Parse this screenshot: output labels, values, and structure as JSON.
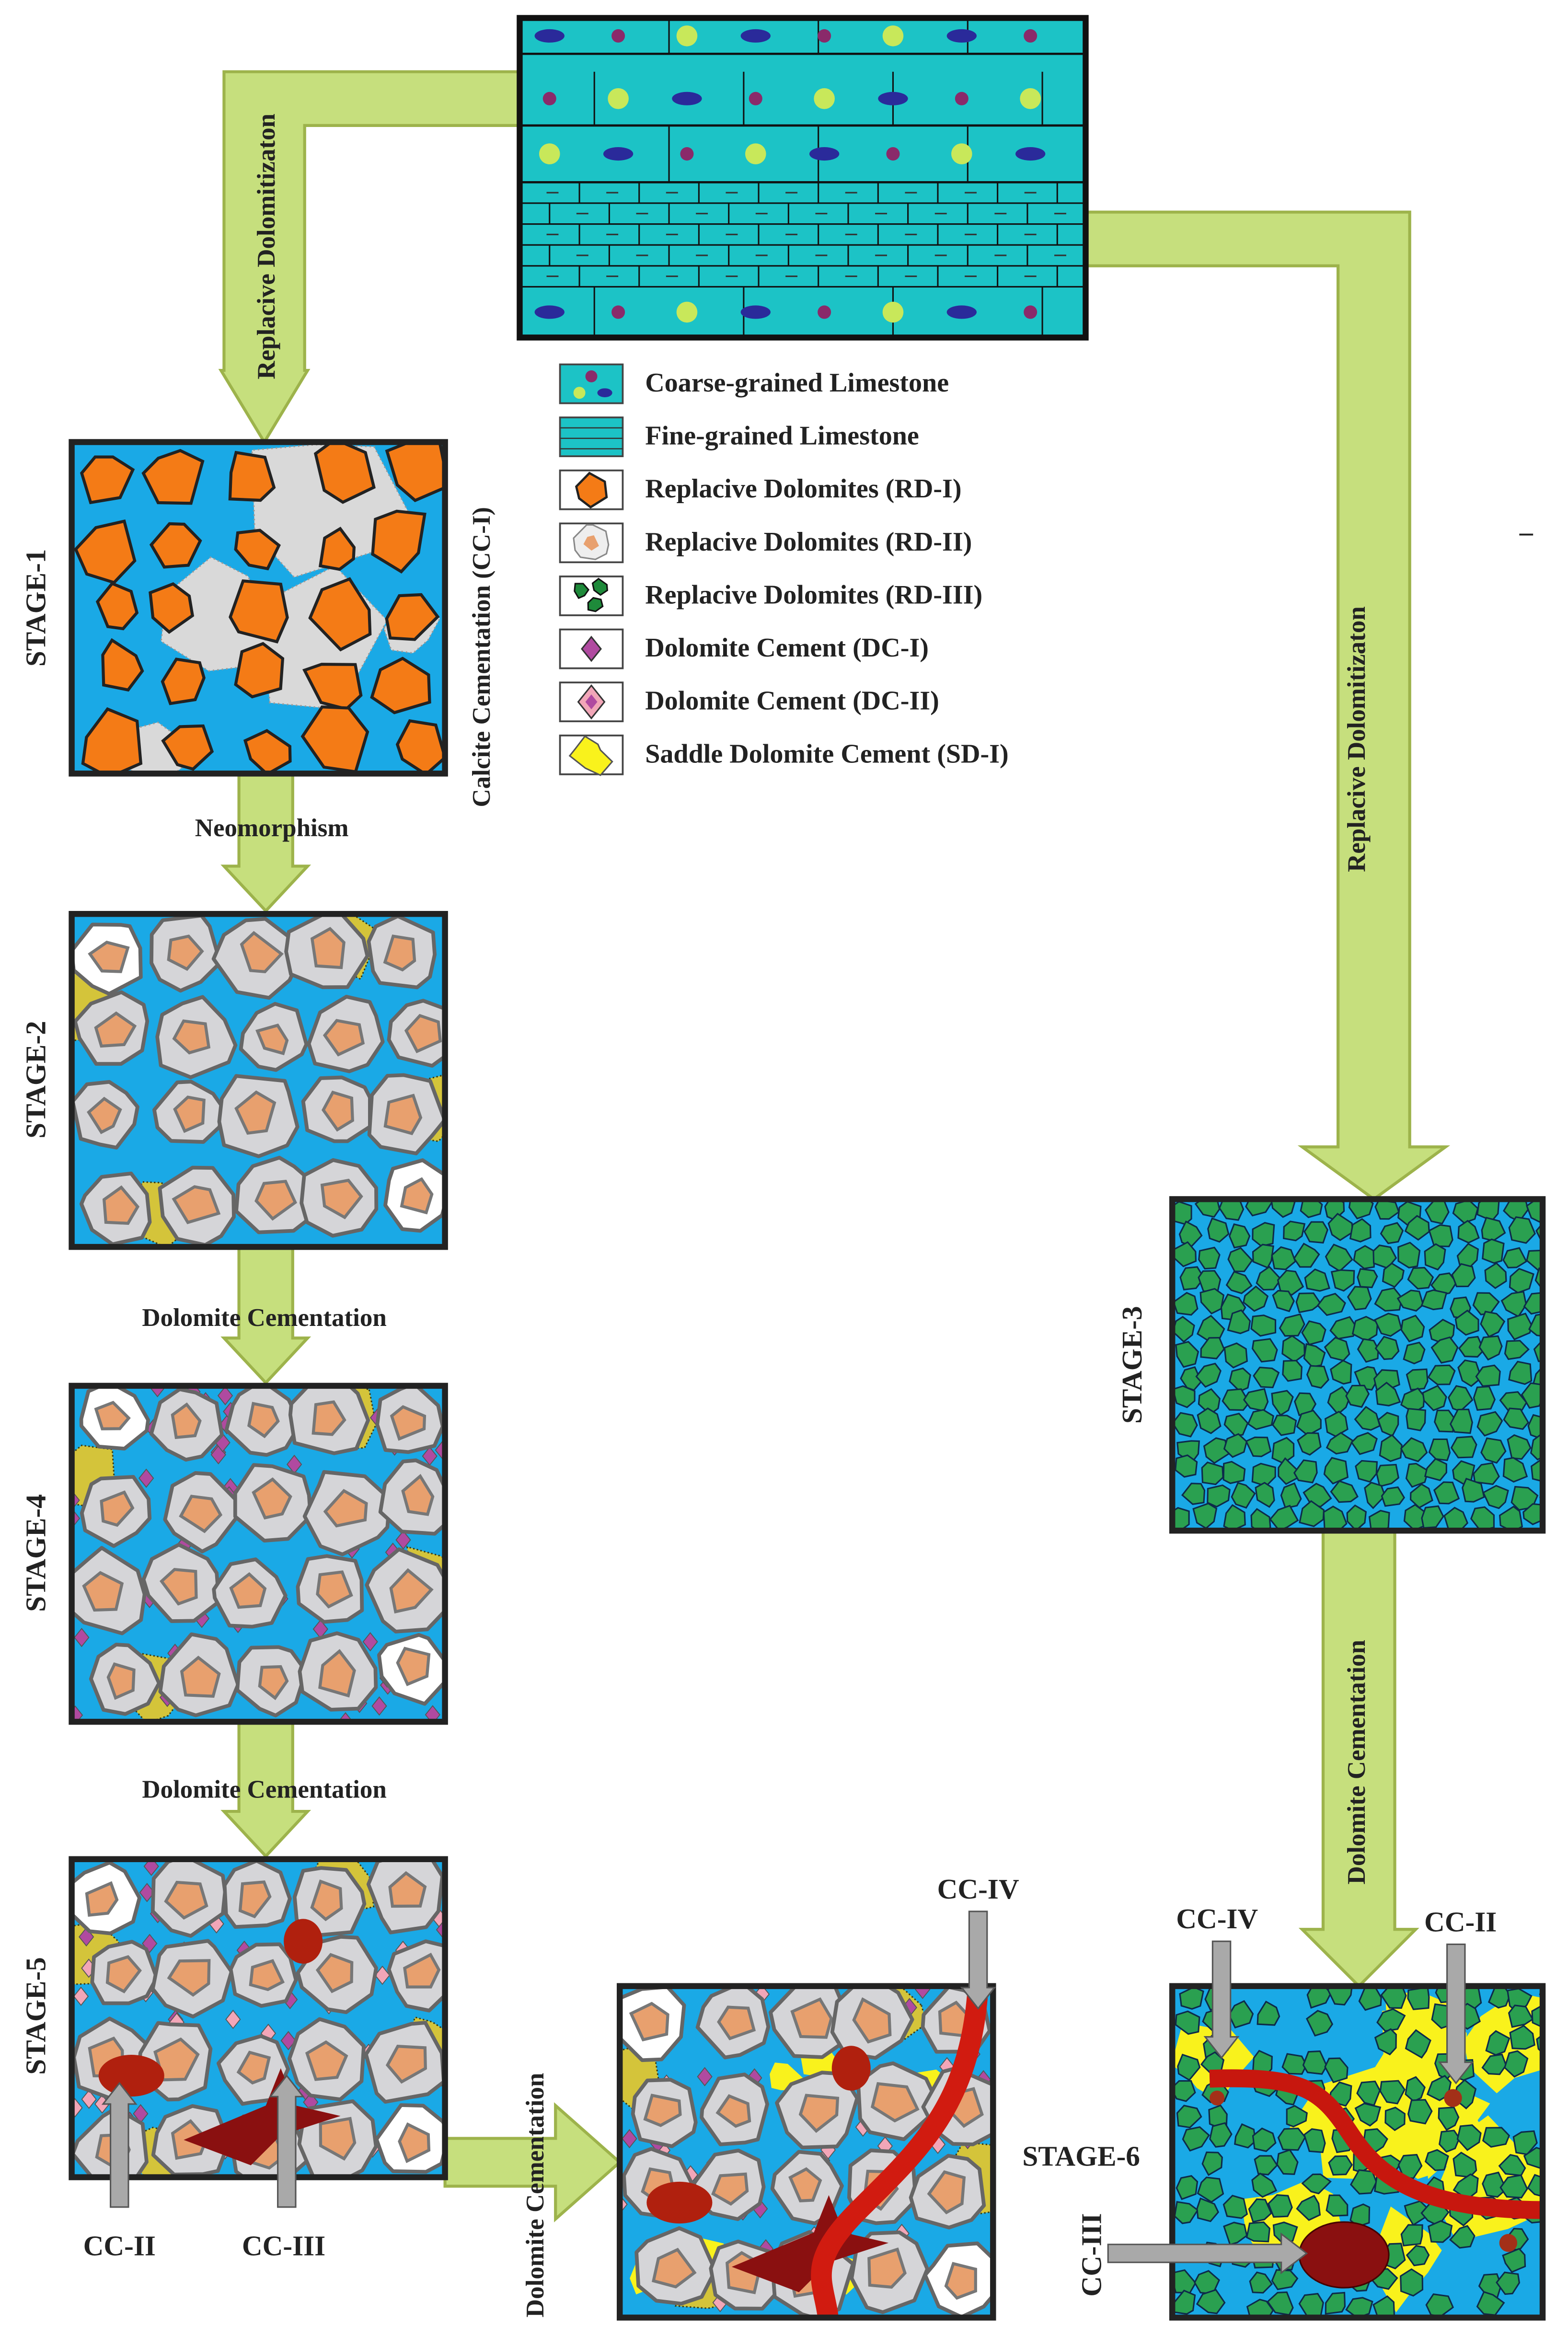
{
  "top_block": {
    "legend": [
      {
        "label": "Coarse-grained Limestone"
      },
      {
        "label": "Fine-grained Limestone"
      },
      {
        "label": "Replacive Dolomites (RD-I)"
      },
      {
        "label": "Replacive Dolomites (RD-II)"
      },
      {
        "label": "Replacive Dolomites (RD-III)"
      },
      {
        "label": "Dolomite Cement (DC-I)"
      },
      {
        "label": "Dolomite Cement (DC-II)"
      },
      {
        "label": "Saddle Dolomite Cement (SD-I)"
      }
    ],
    "mark": "–"
  },
  "stages": [
    {
      "label": "STAGE-1"
    },
    {
      "label": "STAGE-2"
    },
    {
      "label": "STAGE-3"
    },
    {
      "label": "STAGE-4"
    },
    {
      "label": "STAGE-5"
    },
    {
      "label": "STAGE-6"
    }
  ],
  "processes": [
    {
      "label": "Replacive Dolomitizaton"
    },
    {
      "label": "Calcite  Cementation (CC-I)"
    },
    {
      "label": "Neomorphism"
    },
    {
      "label": "Dolomite Cementation"
    },
    {
      "label": "Dolomite Cementation"
    },
    {
      "label": "Dolomite Cementation"
    },
    {
      "label": "Replacive Dolomitizaton"
    },
    {
      "label": "Dolomite Cementation"
    }
  ],
  "callouts": [
    {
      "label": "CC-II"
    },
    {
      "label": "CC-III"
    },
    {
      "label": "CC-IV"
    },
    {
      "label": "CC-IV"
    },
    {
      "label": "CC-II"
    },
    {
      "label": "CC-III"
    }
  ]
}
